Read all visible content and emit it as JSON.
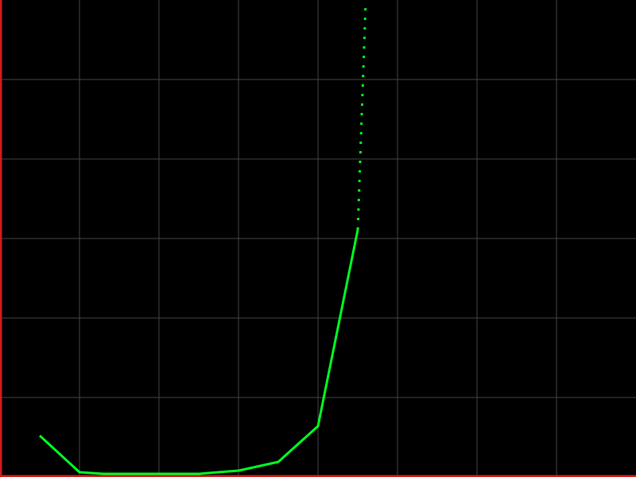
{
  "chart_data": {
    "type": "line",
    "title": "",
    "xlabel": "",
    "ylabel": "",
    "grid": true,
    "legend": "none",
    "x_grid_values": [
      1,
      2,
      3,
      4,
      5,
      6,
      7
    ],
    "y_grid_values": [
      1,
      2,
      3,
      4,
      5
    ],
    "xlim": [
      0,
      8
    ],
    "ylim": [
      0,
      6
    ],
    "series": [
      {
        "style": "solid",
        "x": [
          0.5,
          1.0,
          1.3,
          2.0,
          2.5,
          3.0,
          3.5,
          4.0,
          4.5
        ],
        "y": [
          0.52,
          0.06,
          0.04,
          0.04,
          0.04,
          0.08,
          0.19,
          0.64,
          3.11
        ]
      },
      {
        "style": "dotted",
        "x": [
          4.5,
          4.6
        ],
        "y": [
          3.11,
          5.98
        ]
      }
    ]
  },
  "colors": {
    "background": "#000000",
    "grid": "#444444",
    "axes": "#d21a1a",
    "line": "#00ff22"
  }
}
